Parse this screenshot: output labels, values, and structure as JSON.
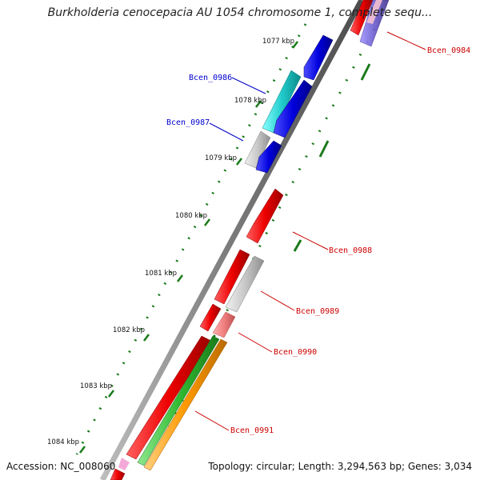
{
  "header": {
    "title": "Burkholderia cenocepacia AU 1054 chromosome 1, complete sequ..."
  },
  "footer": {
    "accession": "Accession: NC_008060",
    "summary": "Topology: circular; Length: 3,294,563 bp; Genes: 3,034"
  },
  "ticks": [
    "1077 kbp",
    "1078 kbp",
    "1079 kbp",
    "1080 kbp",
    "1081 kbp",
    "1082 kbp",
    "1083 kbp",
    "1084 kbp"
  ],
  "gene_labels": [
    {
      "name": "Bcen_0984",
      "color": "#cc0000"
    },
    {
      "name": "Bcen_0986",
      "color": "#0000cc"
    },
    {
      "name": "Bcen_0987",
      "color": "#0000cc"
    },
    {
      "name": "Bcen_0988",
      "color": "#cc0000"
    },
    {
      "name": "Bcen_0989",
      "color": "#cc0000"
    },
    {
      "name": "Bcen_0990",
      "color": "#cc0000"
    },
    {
      "name": "Bcen_0991",
      "color": "#cc0000"
    }
  ],
  "colors": {
    "backbone": "#8a8a8a",
    "forward_gene": "#e60000",
    "reverse_gene": "#0000dd",
    "rna_gene": "#20c0c0",
    "other_gene": "#c8c8c8",
    "gc_dots": "#1a7a1a",
    "pseudo_gene": "#f08080",
    "feature_green": "#33bb33",
    "feature_orange": "#ff9900",
    "feature_purple": "#6a5acd"
  }
}
